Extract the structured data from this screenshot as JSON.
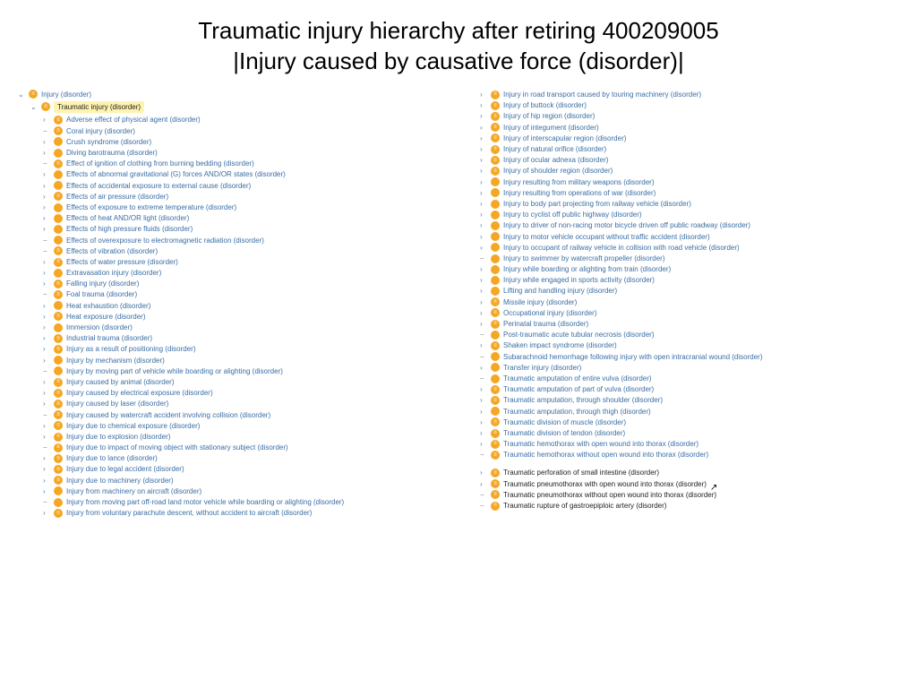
{
  "title": {
    "line1": "Traumatic injury hierarchy after retiring 400209005",
    "line2": "|Injury caused by causative force (disorder)|"
  },
  "tree": {
    "root": "Injury (disorder)",
    "selected": "Traumatic injury (disorder)",
    "left_items": [
      {
        "a": "right",
        "d": "orange",
        "t": "Adverse effect of physical agent (disorder)"
      },
      {
        "a": "dash",
        "d": "orange",
        "t": "Coral injury (disorder)"
      },
      {
        "a": "right",
        "d": "solid",
        "t": "Crush syndrome (disorder)"
      },
      {
        "a": "right",
        "d": "solid",
        "t": "Diving barotrauma (disorder)"
      },
      {
        "a": "dash",
        "d": "orange",
        "t": "Effect of ignition of clothing from burning bedding (disorder)"
      },
      {
        "a": "right",
        "d": "solid",
        "t": "Effects of abnormal gravitational (G) forces AND/OR states (disorder)"
      },
      {
        "a": "right",
        "d": "solid",
        "t": "Effects of accidental exposure to external cause (disorder)"
      },
      {
        "a": "right",
        "d": "orange",
        "t": "Effects of air pressure (disorder)"
      },
      {
        "a": "right",
        "d": "solid",
        "t": "Effects of exposure to extreme temperature (disorder)"
      },
      {
        "a": "right",
        "d": "solid",
        "t": "Effects of heat AND/OR light (disorder)"
      },
      {
        "a": "right",
        "d": "solid",
        "t": "Effects of high pressure fluids (disorder)"
      },
      {
        "a": "dash",
        "d": "solid",
        "t": "Effects of overexposure to electromagnetic radiation (disorder)"
      },
      {
        "a": "dash",
        "d": "orange",
        "t": "Effects of vibration (disorder)"
      },
      {
        "a": "right",
        "d": "orange",
        "t": "Effects of water pressure (disorder)"
      },
      {
        "a": "right",
        "d": "solid",
        "t": "Extravasation injury (disorder)"
      },
      {
        "a": "right",
        "d": "orange",
        "t": "Falling injury (disorder)"
      },
      {
        "a": "dash",
        "d": "orange",
        "t": "Foal trauma (disorder)"
      },
      {
        "a": "right",
        "d": "solid",
        "t": "Heat exhaustion (disorder)"
      },
      {
        "a": "right",
        "d": "orange",
        "t": "Heat exposure (disorder)"
      },
      {
        "a": "right",
        "d": "solid",
        "t": "Immersion (disorder)"
      },
      {
        "a": "right",
        "d": "orange",
        "t": "Industrial trauma (disorder)"
      },
      {
        "a": "right",
        "d": "orange",
        "t": "Injury as a result of positioning (disorder)"
      },
      {
        "a": "right",
        "d": "solid",
        "t": "Injury by mechanism (disorder)"
      },
      {
        "a": "dash",
        "d": "solid",
        "t": "Injury by moving part of vehicle while boarding or alighting (disorder)"
      },
      {
        "a": "right",
        "d": "orange",
        "t": "Injury caused by animal (disorder)"
      },
      {
        "a": "right",
        "d": "orange",
        "t": "Injury caused by electrical exposure (disorder)"
      },
      {
        "a": "right",
        "d": "orange",
        "t": "Injury caused by laser (disorder)"
      },
      {
        "a": "dash",
        "d": "orange",
        "t": "Injury caused by watercraft accident involving collision (disorder)"
      },
      {
        "a": "right",
        "d": "orange",
        "t": "Injury due to chemical exposure (disorder)"
      },
      {
        "a": "right",
        "d": "orange",
        "t": "Injury due to explosion (disorder)"
      },
      {
        "a": "dash",
        "d": "orange",
        "t": "Injury due to impact of moving object with stationary subject (disorder)"
      },
      {
        "a": "right",
        "d": "orange",
        "t": "Injury due to lance (disorder)"
      },
      {
        "a": "right",
        "d": "orange",
        "t": "Injury due to legal accident (disorder)"
      },
      {
        "a": "right",
        "d": "orange",
        "t": "Injury due to machinery (disorder)"
      },
      {
        "a": "right",
        "d": "solid",
        "t": "Injury from machinery on aircraft (disorder)"
      },
      {
        "a": "dash",
        "d": "solid",
        "t": "Injury from moving part off-road land motor vehicle while boarding or alighting (disorder)"
      },
      {
        "a": "right",
        "d": "orange",
        "t": "Injury from voluntary parachute descent, without accident to aircraft (disorder)"
      }
    ],
    "right_items": [
      {
        "a": "right",
        "d": "orange",
        "t": "Injury in road transport caused by touring machinery (disorder)"
      },
      {
        "a": "right",
        "d": "orange",
        "t": "Injury of buttock (disorder)"
      },
      {
        "a": "right",
        "d": "orange",
        "t": "Injury of hip region (disorder)"
      },
      {
        "a": "right",
        "d": "orange",
        "t": "Injury of integument (disorder)"
      },
      {
        "a": "right",
        "d": "orange",
        "t": "Injury of interscapular region (disorder)"
      },
      {
        "a": "right",
        "d": "orange",
        "t": "Injury of natural orifice (disorder)"
      },
      {
        "a": "right",
        "d": "orange",
        "t": "Injury of ocular adnexa (disorder)"
      },
      {
        "a": "right",
        "d": "orange",
        "t": "Injury of shoulder region (disorder)"
      },
      {
        "a": "right",
        "d": "solid",
        "t": "Injury resulting from military weapons (disorder)"
      },
      {
        "a": "right",
        "d": "solid",
        "t": "Injury resulting from operations of war (disorder)"
      },
      {
        "a": "right",
        "d": "solid",
        "t": "Injury to body part projecting from railway vehicle (disorder)"
      },
      {
        "a": "right",
        "d": "solid",
        "t": "Injury to cyclist off public highway (disorder)"
      },
      {
        "a": "right",
        "d": "solid",
        "t": "Injury to driver of non-racing motor bicycle driven off public roadway (disorder)"
      },
      {
        "a": "right",
        "d": "solid",
        "t": "Injury to motor vehicle occupant without traffic accident (disorder)"
      },
      {
        "a": "right",
        "d": "solid",
        "t": "Injury to occupant of railway vehicle in collision with road vehicle (disorder)"
      },
      {
        "a": "dash",
        "d": "solid",
        "t": "Injury to swimmer by watercraft propeller (disorder)"
      },
      {
        "a": "right",
        "d": "solid",
        "t": "Injury while boarding or alighting from train (disorder)"
      },
      {
        "a": "right",
        "d": "solid",
        "t": "Injury while engaged in sports activity (disorder)"
      },
      {
        "a": "right",
        "d": "solid",
        "t": "Lifting and handling injury (disorder)"
      },
      {
        "a": "right",
        "d": "orange",
        "t": "Missile injury (disorder)"
      },
      {
        "a": "right",
        "d": "orange",
        "t": "Occupational injury (disorder)"
      },
      {
        "a": "right",
        "d": "orange",
        "t": "Perinatal trauma (disorder)"
      },
      {
        "a": "dash",
        "d": "solid",
        "t": "Post-traumatic acute tubular necrosis (disorder)"
      },
      {
        "a": "right",
        "d": "orange",
        "t": "Shaken impact syndrome (disorder)"
      },
      {
        "a": "dash",
        "d": "solid",
        "t": "Subarachnoid hemorrhage following injury with open intracranial wound (disorder)"
      },
      {
        "a": "right",
        "d": "solid",
        "t": "Transfer injury (disorder)"
      },
      {
        "a": "dash",
        "d": "solid",
        "t": "Traumatic amputation of entire vulva (disorder)"
      },
      {
        "a": "right",
        "d": "orange",
        "t": "Traumatic amputation of part of vulva (disorder)"
      },
      {
        "a": "right",
        "d": "orange",
        "t": "Traumatic amputation, through shoulder (disorder)"
      },
      {
        "a": "right",
        "d": "solid",
        "t": "Traumatic amputation, through thigh (disorder)"
      },
      {
        "a": "right",
        "d": "orange",
        "t": "Traumatic division of muscle (disorder)"
      },
      {
        "a": "right",
        "d": "orange",
        "t": "Traumatic division of tendon (disorder)"
      },
      {
        "a": "right",
        "d": "orange",
        "t": "Traumatic hemothorax with open wound into thorax (disorder)"
      },
      {
        "a": "dash",
        "d": "orange",
        "t": "Traumatic hemothorax without open wound into thorax (disorder)"
      }
    ],
    "right_bottom_items": [
      {
        "a": "right",
        "d": "orange",
        "t": "Traumatic perforation of small intestine (disorder)"
      },
      {
        "a": "right",
        "d": "orange",
        "t": "Traumatic pneumothorax with open wound into thorax (disorder)",
        "cursor": true
      },
      {
        "a": "dash",
        "d": "orange",
        "t": "Traumatic pneumothorax without open wound into thorax (disorder)"
      },
      {
        "a": "dash",
        "d": "orange",
        "t": "Traumatic rupture of gastroepiploic artery (disorder)"
      }
    ]
  },
  "colors": {
    "link": "#3a6ea5",
    "highlight": "#fff3b0",
    "dot_orange": "#f5a623",
    "text": "#222222",
    "background": "#ffffff"
  }
}
